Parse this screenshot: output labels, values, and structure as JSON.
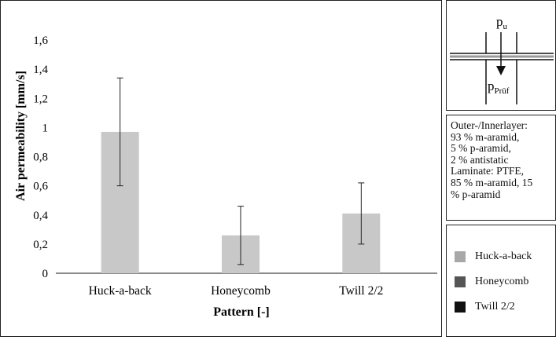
{
  "chart_data": {
    "type": "bar",
    "categories": [
      "Huck-a-back",
      "Honeycomb",
      "Twill 2/2"
    ],
    "values": [
      0.97,
      0.26,
      0.41
    ],
    "error_low": [
      0.6,
      0.06,
      0.2
    ],
    "error_high": [
      1.34,
      0.46,
      0.62
    ],
    "xlabel": "Pattern [-]",
    "ylabel": "Air permeability [mm/s]",
    "ylim": [
      0,
      1.6
    ],
    "yticks": [
      0,
      0.2,
      0.4,
      0.6,
      0.8,
      1,
      1.2,
      1.4,
      1.6
    ],
    "ytick_labels": [
      "0",
      "0,2",
      "0,4",
      "0,6",
      "0,8",
      "1",
      "1,2",
      "1,4",
      "1,6"
    ],
    "bar_color": "#c8c8c8",
    "grid": false,
    "legend_placement": "right"
  },
  "schematic": {
    "top_label": "p",
    "top_sub": "u",
    "bottom_label": "p",
    "bottom_sub": "Prüf"
  },
  "material": {
    "lines": [
      "Outer-/Innerlayer:",
      "93 % m-aramid,",
      "5 % p-aramid,",
      "2 % antistatic",
      "Laminate: PTFE,",
      "85 % m-aramid, 15",
      "% p-aramid"
    ]
  },
  "legend": {
    "items": [
      {
        "label": "Huck-a-back",
        "color": "#a8a8a8"
      },
      {
        "label": "Honeycomb",
        "color": "#555555"
      },
      {
        "label": "Twill 2/2",
        "color": "#111111"
      }
    ]
  }
}
